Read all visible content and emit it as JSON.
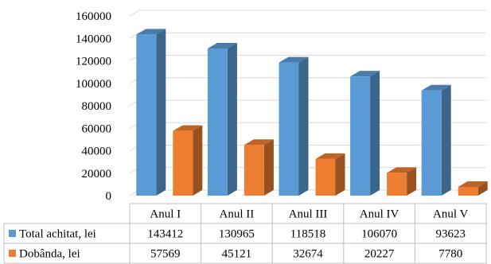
{
  "chart_data": {
    "type": "bar",
    "title": "",
    "xlabel": "",
    "ylabel": "",
    "ylim": [
      0,
      160000
    ],
    "yticks": [
      0,
      20000,
      40000,
      60000,
      80000,
      100000,
      120000,
      140000,
      160000
    ],
    "grid": true,
    "legend": "in data table",
    "categories": [
      "Anul I",
      "Anul II",
      "Anul III",
      "Anul IV",
      "Anul V"
    ],
    "series": [
      {
        "name": "Total achitat, lei",
        "values": [
          143412,
          130965,
          118518,
          106070,
          93623
        ],
        "color": "#5B9BD5"
      },
      {
        "name": "Dobânda, lei",
        "values": [
          57569,
          45121,
          32674,
          20227,
          7780
        ],
        "color": "#ED7D31"
      }
    ]
  }
}
